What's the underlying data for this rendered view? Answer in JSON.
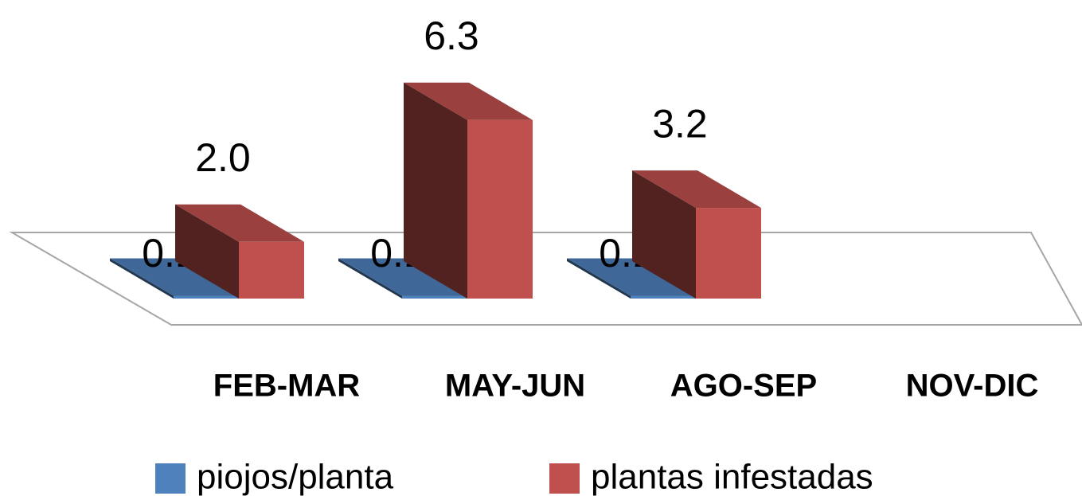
{
  "chart_data": {
    "type": "bar3d",
    "categories": [
      "FEB-MAR",
      "MAY-JUN",
      "AGO-SEP",
      "NOV-DIC"
    ],
    "series": [
      {
        "name": "piojos/planta",
        "color": "#4f81bd",
        "values": [
          0.1,
          0.1,
          0.1,
          null
        ]
      },
      {
        "name": "plantas infestadas",
        "color": "#c0504d",
        "values": [
          2.0,
          6.3,
          3.2,
          null
        ],
        "value_labels": [
          "2.0",
          "6.3",
          "3.2",
          null
        ]
      }
    ],
    "legend": "bottom"
  }
}
